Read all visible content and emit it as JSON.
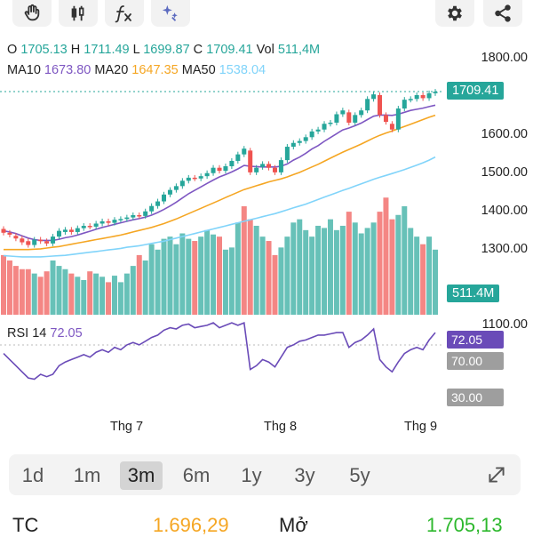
{
  "toolbar": {
    "left_icons": [
      "hand-icon",
      "candlestick-icon",
      "function-icon",
      "sparkle-icon"
    ],
    "right_icons": [
      "gear-icon",
      "share-icon"
    ]
  },
  "ohlc": {
    "o_label": "O",
    "o_value": "1705.13",
    "h_label": "H",
    "h_value": "1711.49",
    "l_label": "L",
    "l_value": "1699.87",
    "c_label": "C",
    "c_value": "1709.41",
    "vol_label": "Vol",
    "vol_value": "511,4M"
  },
  "ma": {
    "ma10_label": "MA10",
    "ma10_value": "1673.80",
    "ma20_label": "MA20",
    "ma20_value": "1647.35",
    "ma50_label": "MA50",
    "ma50_value": "1538.04"
  },
  "axis": {
    "price_ticks": [
      "1800.00",
      "1600.00",
      "1500.00",
      "1400.00",
      "1300.00",
      "1100.00"
    ],
    "current_price": "1709.41",
    "volume_tag": "511.4M",
    "rsi_tags": [
      "72.05",
      "70.00",
      "30.00"
    ]
  },
  "rsi": {
    "label": "RSI 14",
    "value": "72.05"
  },
  "months": [
    "Thg 7",
    "Thg 8",
    "Thg 9"
  ],
  "ranges": [
    {
      "label": "1d",
      "active": false
    },
    {
      "label": "1m",
      "active": false
    },
    {
      "label": "3m",
      "active": true
    },
    {
      "label": "6m",
      "active": false
    },
    {
      "label": "1y",
      "active": false
    },
    {
      "label": "3y",
      "active": false
    },
    {
      "label": "5y",
      "active": false
    }
  ],
  "bottom": {
    "tc_label": "TC",
    "tc_value": "1.696,29",
    "open_label": "Mở",
    "open_value": "1.705,13"
  },
  "colors": {
    "up": "#26a69a",
    "down": "#ef5350",
    "ma10": "#7e57c2",
    "ma20": "#f5a623",
    "ma50": "#81d4fa",
    "rsi": "#6a4bb8",
    "tc": "#f5a623",
    "open": "#2db82d"
  },
  "chart_data": {
    "type": "candlestick",
    "ylim": [
      1100,
      1800
    ],
    "candles": [
      {
        "o": 1350,
        "c": 1340
      },
      {
        "o": 1340,
        "c": 1335
      },
      {
        "o": 1332,
        "c": 1325
      },
      {
        "o": 1325,
        "c": 1315
      },
      {
        "o": 1318,
        "c": 1308
      },
      {
        "o": 1308,
        "c": 1322
      },
      {
        "o": 1322,
        "c": 1318
      },
      {
        "o": 1318,
        "c": 1312
      },
      {
        "o": 1312,
        "c": 1330
      },
      {
        "o": 1330,
        "c": 1345
      },
      {
        "o": 1342,
        "c": 1348
      },
      {
        "o": 1348,
        "c": 1342
      },
      {
        "o": 1342,
        "c": 1352
      },
      {
        "o": 1352,
        "c": 1358
      },
      {
        "o": 1358,
        "c": 1356
      },
      {
        "o": 1356,
        "c": 1364
      },
      {
        "o": 1364,
        "c": 1370
      },
      {
        "o": 1370,
        "c": 1366
      },
      {
        "o": 1366,
        "c": 1374
      },
      {
        "o": 1374,
        "c": 1376
      },
      {
        "o": 1376,
        "c": 1380
      },
      {
        "o": 1380,
        "c": 1386
      },
      {
        "o": 1386,
        "c": 1384
      },
      {
        "o": 1384,
        "c": 1396
      },
      {
        "o": 1396,
        "c": 1410
      },
      {
        "o": 1410,
        "c": 1422
      },
      {
        "o": 1422,
        "c": 1440
      },
      {
        "o": 1440,
        "c": 1452
      },
      {
        "o": 1452,
        "c": 1462
      },
      {
        "o": 1462,
        "c": 1476
      },
      {
        "o": 1476,
        "c": 1484
      },
      {
        "o": 1484,
        "c": 1482
      },
      {
        "o": 1482,
        "c": 1488
      },
      {
        "o": 1488,
        "c": 1496
      },
      {
        "o": 1496,
        "c": 1510
      },
      {
        "o": 1510,
        "c": 1502
      },
      {
        "o": 1502,
        "c": 1514
      },
      {
        "o": 1514,
        "c": 1528
      },
      {
        "o": 1528,
        "c": 1545
      },
      {
        "o": 1545,
        "c": 1560
      },
      {
        "o": 1555,
        "c": 1498
      },
      {
        "o": 1498,
        "c": 1510
      },
      {
        "o": 1512,
        "c": 1520
      },
      {
        "o": 1520,
        "c": 1510
      },
      {
        "o": 1510,
        "c": 1498
      },
      {
        "o": 1498,
        "c": 1530
      },
      {
        "o": 1530,
        "c": 1565
      },
      {
        "o": 1565,
        "c": 1575
      },
      {
        "o": 1575,
        "c": 1580
      },
      {
        "o": 1580,
        "c": 1590
      },
      {
        "o": 1590,
        "c": 1605
      },
      {
        "o": 1605,
        "c": 1610
      },
      {
        "o": 1610,
        "c": 1625
      },
      {
        "o": 1625,
        "c": 1628
      },
      {
        "o": 1628,
        "c": 1650
      },
      {
        "o": 1650,
        "c": 1660
      },
      {
        "o": 1655,
        "c": 1628
      },
      {
        "o": 1628,
        "c": 1648
      },
      {
        "o": 1648,
        "c": 1660
      },
      {
        "o": 1660,
        "c": 1690
      },
      {
        "o": 1690,
        "c": 1702
      },
      {
        "o": 1700,
        "c": 1648
      },
      {
        "o": 1648,
        "c": 1630
      },
      {
        "o": 1625,
        "c": 1610
      },
      {
        "o": 1610,
        "c": 1665
      },
      {
        "o": 1665,
        "c": 1688
      },
      {
        "o": 1688,
        "c": 1690
      },
      {
        "o": 1690,
        "c": 1700
      },
      {
        "o": 1700,
        "c": 1692
      },
      {
        "o": 1692,
        "c": 1705
      },
      {
        "o": 1705,
        "c": 1709
      }
    ],
    "volume_heights": [
      0.55,
      0.5,
      0.45,
      0.42,
      0.42,
      0.38,
      0.35,
      0.4,
      0.5,
      0.45,
      0.42,
      0.38,
      0.35,
      0.32,
      0.4,
      0.38,
      0.35,
      0.3,
      0.36,
      0.3,
      0.38,
      0.45,
      0.55,
      0.5,
      0.65,
      0.6,
      0.7,
      0.72,
      0.65,
      0.75,
      0.7,
      0.68,
      0.72,
      0.78,
      0.74,
      0.72,
      0.6,
      0.62,
      0.85,
      1.0,
      0.88,
      0.82,
      0.72,
      0.68,
      0.55,
      0.62,
      0.72,
      0.85,
      0.88,
      0.78,
      0.72,
      0.82,
      0.8,
      0.88,
      0.78,
      0.82,
      0.95,
      0.85,
      0.75,
      0.8,
      0.85,
      0.95,
      1.08,
      0.88,
      0.92,
      1.0,
      0.8,
      0.72,
      0.65,
      0.72,
      0.6
    ],
    "volume_colors": [
      "d",
      "d",
      "d",
      "d",
      "d",
      "u",
      "d",
      "d",
      "u",
      "u",
      "u",
      "d",
      "u",
      "u",
      "d",
      "u",
      "u",
      "d",
      "u",
      "u",
      "u",
      "u",
      "d",
      "u",
      "u",
      "u",
      "u",
      "u",
      "u",
      "u",
      "u",
      "d",
      "u",
      "u",
      "u",
      "d",
      "u",
      "u",
      "u",
      "d",
      "d",
      "u",
      "u",
      "d",
      "d",
      "u",
      "u",
      "u",
      "u",
      "u",
      "u",
      "u",
      "u",
      "u",
      "u",
      "u",
      "d",
      "u",
      "u",
      "u",
      "u",
      "d",
      "d",
      "d",
      "u",
      "u",
      "u",
      "u",
      "d",
      "u",
      "u"
    ],
    "ma10": [
      1345,
      1342,
      1338,
      1332,
      1326,
      1322,
      1320,
      1320,
      1320,
      1323,
      1327,
      1330,
      1334,
      1339,
      1344,
      1349,
      1354,
      1358,
      1362,
      1366,
      1370,
      1374,
      1377,
      1381,
      1386,
      1393,
      1401,
      1410,
      1420,
      1431,
      1442,
      1451,
      1460,
      1469,
      1478,
      1486,
      1492,
      1499,
      1507,
      1516,
      1514,
      1513,
      1512,
      1512,
      1512,
      1514,
      1520,
      1530,
      1538,
      1548,
      1559,
      1568,
      1579,
      1589,
      1599,
      1609,
      1614,
      1620,
      1627,
      1636,
      1645,
      1648,
      1648,
      1647,
      1650,
      1655,
      1660,
      1663,
      1666,
      1670,
      1673.8
    ],
    "ma20": [
      1296,
      1296,
      1296,
      1296,
      1296,
      1297,
      1298,
      1300,
      1302,
      1304,
      1307,
      1310,
      1313,
      1316,
      1319,
      1322,
      1325,
      1328,
      1331,
      1334,
      1338,
      1342,
      1346,
      1350,
      1354,
      1359,
      1364,
      1370,
      1376,
      1383,
      1390,
      1397,
      1404,
      1411,
      1418,
      1425,
      1432,
      1439,
      1446,
      1453,
      1458,
      1463,
      1468,
      1473,
      1477,
      1481,
      1486,
      1492,
      1498,
      1505,
      1512,
      1519,
      1527,
      1535,
      1543,
      1551,
      1558,
      1565,
      1572,
      1580,
      1588,
      1595,
      1601,
      1606,
      1612,
      1618,
      1624,
      1630,
      1636,
      1642,
      1647.35
    ],
    "ma50": [
      1280,
      1279,
      1278,
      1277,
      1277,
      1277,
      1277,
      1278,
      1279,
      1280,
      1281,
      1283,
      1285,
      1287,
      1289,
      1291,
      1293,
      1295,
      1297,
      1299,
      1302,
      1304,
      1306,
      1309,
      1312,
      1315,
      1318,
      1322,
      1326,
      1330,
      1334,
      1338,
      1342,
      1346,
      1350,
      1354,
      1358,
      1362,
      1366,
      1370,
      1374,
      1378,
      1382,
      1386,
      1390,
      1395,
      1400,
      1405,
      1410,
      1415,
      1421,
      1427,
      1433,
      1439,
      1445,
      1451,
      1456,
      1462,
      1468,
      1474,
      1480,
      1485,
      1490,
      1495,
      1500,
      1505,
      1511,
      1517,
      1523,
      1530,
      1538.04
    ],
    "rsi": [
      55,
      50,
      45,
      40,
      35,
      34,
      38,
      36,
      38,
      45,
      48,
      50,
      52,
      54,
      52,
      56,
      58,
      56,
      60,
      58,
      62,
      64,
      62,
      65,
      68,
      70,
      74,
      76,
      75,
      78,
      79,
      76,
      77,
      78,
      80,
      76,
      78,
      80,
      78,
      80,
      42,
      45,
      50,
      48,
      44,
      52,
      60,
      62,
      65,
      66,
      68,
      70,
      70,
      71,
      72,
      72,
      60,
      64,
      66,
      70,
      75,
      50,
      44,
      40,
      48,
      55,
      58,
      60,
      58,
      66,
      72.05
    ]
  }
}
